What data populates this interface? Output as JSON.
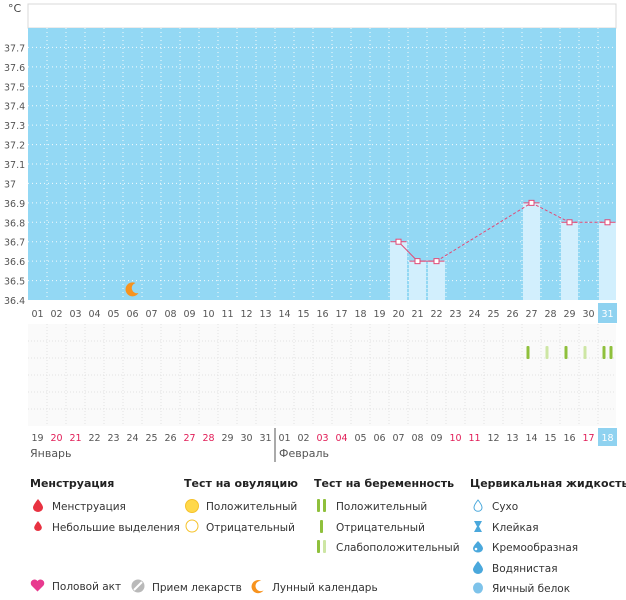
{
  "chart_data": {
    "type": "line",
    "unit_label": "°C",
    "ylim": [
      36.4,
      37.8
    ],
    "y_ticks": [
      "37.7",
      "37.6",
      "37.5",
      "37.4",
      "37.3",
      "37.2",
      "37.1",
      "37",
      "36.9",
      "36.8",
      "36.7",
      "36.6",
      "36.5",
      "36.4"
    ],
    "cycle_days": [
      "01",
      "02",
      "03",
      "04",
      "05",
      "06",
      "07",
      "08",
      "09",
      "10",
      "11",
      "12",
      "13",
      "14",
      "15",
      "16",
      "17",
      "18",
      "19",
      "20",
      "21",
      "22",
      "23",
      "24",
      "25",
      "26",
      "27",
      "28",
      "29",
      "30",
      "31"
    ],
    "dates": [
      {
        "d": "19",
        "red": false
      },
      {
        "d": "20",
        "red": true
      },
      {
        "d": "21",
        "red": true
      },
      {
        "d": "22",
        "red": false
      },
      {
        "d": "23",
        "red": false
      },
      {
        "d": "24",
        "red": false
      },
      {
        "d": "25",
        "red": false
      },
      {
        "d": "26",
        "red": false
      },
      {
        "d": "27",
        "red": true
      },
      {
        "d": "28",
        "red": true
      },
      {
        "d": "29",
        "red": false
      },
      {
        "d": "30",
        "red": false
      },
      {
        "d": "31",
        "red": false
      },
      {
        "d": "01",
        "red": false
      },
      {
        "d": "02",
        "red": false
      },
      {
        "d": "03",
        "red": true
      },
      {
        "d": "04",
        "red": true
      },
      {
        "d": "05",
        "red": false
      },
      {
        "d": "06",
        "red": false
      },
      {
        "d": "07",
        "red": false
      },
      {
        "d": "08",
        "red": false
      },
      {
        "d": "09",
        "red": false
      },
      {
        "d": "10",
        "red": true
      },
      {
        "d": "11",
        "red": true
      },
      {
        "d": "12",
        "red": false
      },
      {
        "d": "13",
        "red": false
      },
      {
        "d": "14",
        "red": false
      },
      {
        "d": "15",
        "red": false
      },
      {
        "d": "16",
        "red": false
      },
      {
        "d": "17",
        "red": true
      },
      {
        "d": "18",
        "red": false
      }
    ],
    "month_labels": [
      "Январь",
      "Февраль"
    ],
    "temperature": [
      {
        "day": 20,
        "value": 36.7
      },
      {
        "day": 21,
        "value": 36.6
      },
      {
        "day": 22,
        "value": 36.6
      },
      {
        "day": 27,
        "value": 36.9
      },
      {
        "day": 29,
        "value": 36.8
      },
      {
        "day": 31,
        "value": 36.8
      }
    ],
    "lunar_marker_day": 6,
    "pregnancy_tests": [
      {
        "day": 27,
        "type": "positive"
      },
      {
        "day": 28,
        "type": "weak"
      },
      {
        "day": 29,
        "type": "positive"
      },
      {
        "day": 30,
        "type": "weak"
      },
      {
        "day": 31,
        "type": "positive"
      }
    ],
    "highlight_day": 31,
    "colors": {
      "plot_bg": "#93d8f4",
      "bar": "#d2effd",
      "line": "#e24a76",
      "highlight": "#8fd2f0",
      "weekend": "#e11d57",
      "pregnancy_positive": "#8fc03c",
      "pregnancy_weak": "#cde6a4",
      "moon": "#f7931e"
    }
  },
  "legend": {
    "menstruation": {
      "title": "Менструация",
      "items": [
        "Менструация",
        "Небольшие выделения"
      ]
    },
    "ovulation": {
      "title": "Тест на овуляцию",
      "items": [
        "Положительный",
        "Отрицательный"
      ]
    },
    "pregnancy": {
      "title": "Тест на беременность",
      "items": [
        "Положительный",
        "Отрицательный",
        "Слабоположительный"
      ]
    },
    "cervical": {
      "title": "Цервикальная жидкость",
      "items": [
        "Сухо",
        "Клейкая",
        "Кремообразная",
        "Водянистая",
        "Яичный белок"
      ]
    },
    "bottom": [
      "Половой акт",
      "Прием лекарств",
      "Лунный календарь"
    ]
  }
}
